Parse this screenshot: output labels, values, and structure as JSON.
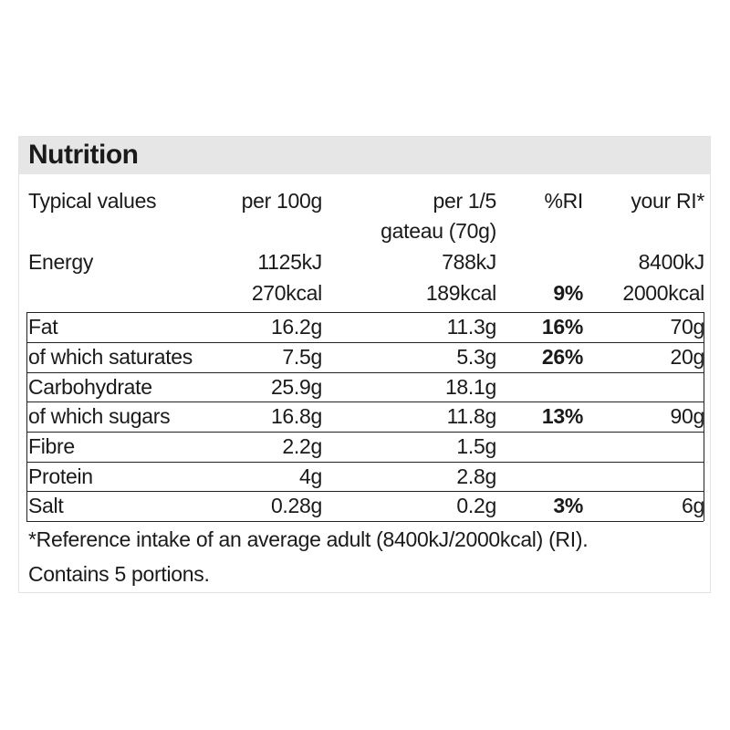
{
  "title": "Nutrition",
  "headers": {
    "typical": "Typical values",
    "per100": "per 100g",
    "perPortion1": "per 1/5",
    "perPortion2": "gateau (70g)",
    "ri": "%RI",
    "yourRi": "your RI*"
  },
  "energy": {
    "label": "Energy",
    "kj100": "1125kJ",
    "kcal100": "270kcal",
    "kjPortion": "788kJ",
    "kcalPortion": "189kcal",
    "ri": "9%",
    "yourRiKj": "8400kJ",
    "yourRiKcal": "2000kcal"
  },
  "rows": [
    {
      "label": "Fat",
      "per100": "16.2g",
      "perPortion": "11.3g",
      "ri": "16%",
      "yourRi": "70g"
    },
    {
      "label": "of which saturates",
      "per100": "7.5g",
      "perPortion": "5.3g",
      "ri": "26%",
      "yourRi": "20g"
    },
    {
      "label": "Carbohydrate",
      "per100": "25.9g",
      "perPortion": "18.1g",
      "ri": "",
      "yourRi": ""
    },
    {
      "label": "of which sugars",
      "per100": "16.8g",
      "perPortion": "11.8g",
      "ri": "13%",
      "yourRi": "90g"
    },
    {
      "label": "Fibre",
      "per100": "2.2g",
      "perPortion": "1.5g",
      "ri": "",
      "yourRi": ""
    },
    {
      "label": "Protein",
      "per100": "4g",
      "perPortion": "2.8g",
      "ri": "",
      "yourRi": ""
    },
    {
      "label": "Salt",
      "per100": "0.28g",
      "perPortion": "0.2g",
      "ri": "3%",
      "yourRi": "6g"
    }
  ],
  "footnote": "*Reference intake of an average adult (8400kJ/2000kcal) (RI).",
  "portions": "Contains 5 portions."
}
